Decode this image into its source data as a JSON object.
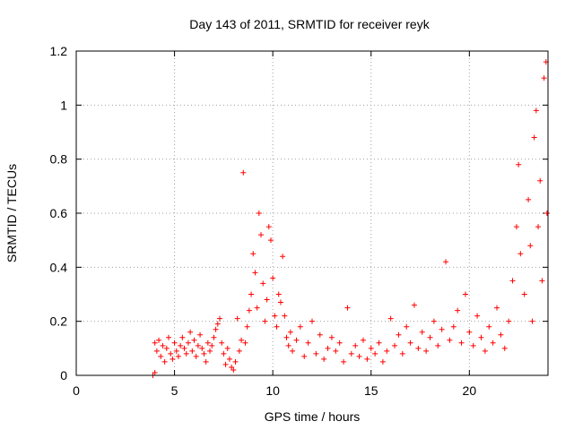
{
  "chart_data": {
    "type": "scatter",
    "title": "Day 143 of 2011, SRMTID for receiver reyk",
    "xlabel": "GPS time / hours",
    "ylabel": "SRMTID / TECUs",
    "xlim": [
      0,
      24
    ],
    "ylim": [
      0,
      1.2
    ],
    "xticks": [
      "0",
      "5",
      "10",
      "15",
      "20"
    ],
    "yticks": [
      "0",
      "0.2",
      "0.4",
      "0.6",
      "0.8",
      "1",
      "1.2"
    ],
    "grid": true,
    "marker": "plus",
    "color": "#ff0000",
    "series": [
      {
        "points": [
          [
            3.9,
            0.0
          ],
          [
            4.0,
            0.01
          ],
          [
            4.0,
            0.12
          ],
          [
            4.1,
            0.09
          ],
          [
            4.2,
            0.13
          ],
          [
            4.3,
            0.07
          ],
          [
            4.4,
            0.11
          ],
          [
            4.5,
            0.05
          ],
          [
            4.6,
            0.1
          ],
          [
            4.7,
            0.14
          ],
          [
            4.8,
            0.08
          ],
          [
            4.9,
            0.06
          ],
          [
            5.0,
            0.12
          ],
          [
            5.1,
            0.09
          ],
          [
            5.2,
            0.07
          ],
          [
            5.3,
            0.11
          ],
          [
            5.4,
            0.14
          ],
          [
            5.5,
            0.1
          ],
          [
            5.6,
            0.08
          ],
          [
            5.7,
            0.12
          ],
          [
            5.8,
            0.16
          ],
          [
            5.9,
            0.09
          ],
          [
            6.0,
            0.13
          ],
          [
            6.1,
            0.07
          ],
          [
            6.2,
            0.11
          ],
          [
            6.3,
            0.15
          ],
          [
            6.4,
            0.1
          ],
          [
            6.5,
            0.08
          ],
          [
            6.6,
            0.05
          ],
          [
            6.7,
            0.12
          ],
          [
            6.8,
            0.09
          ],
          [
            6.9,
            0.11
          ],
          [
            7.0,
            0.14
          ],
          [
            7.1,
            0.17
          ],
          [
            7.2,
            0.19
          ],
          [
            7.3,
            0.21
          ],
          [
            7.4,
            0.12
          ],
          [
            7.5,
            0.08
          ],
          [
            7.6,
            0.04
          ],
          [
            7.7,
            0.1
          ],
          [
            7.8,
            0.06
          ],
          [
            7.9,
            0.03
          ],
          [
            8.0,
            0.02
          ],
          [
            8.1,
            0.05
          ],
          [
            8.2,
            0.21
          ],
          [
            8.3,
            0.09
          ],
          [
            8.4,
            0.13
          ],
          [
            8.5,
            0.75
          ],
          [
            8.6,
            0.12
          ],
          [
            8.7,
            0.18
          ],
          [
            8.8,
            0.24
          ],
          [
            8.9,
            0.3
          ],
          [
            9.0,
            0.45
          ],
          [
            9.1,
            0.38
          ],
          [
            9.2,
            0.25
          ],
          [
            9.3,
            0.6
          ],
          [
            9.4,
            0.52
          ],
          [
            9.5,
            0.34
          ],
          [
            9.6,
            0.2
          ],
          [
            9.7,
            0.28
          ],
          [
            9.8,
            0.55
          ],
          [
            9.9,
            0.5
          ],
          [
            10.0,
            0.36
          ],
          [
            10.1,
            0.22
          ],
          [
            10.2,
            0.18
          ],
          [
            10.3,
            0.3
          ],
          [
            10.4,
            0.27
          ],
          [
            10.5,
            0.44
          ],
          [
            10.6,
            0.22
          ],
          [
            10.7,
            0.14
          ],
          [
            10.8,
            0.11
          ],
          [
            10.9,
            0.16
          ],
          [
            11.0,
            0.09
          ],
          [
            11.2,
            0.13
          ],
          [
            11.4,
            0.18
          ],
          [
            11.6,
            0.07
          ],
          [
            11.8,
            0.12
          ],
          [
            12.0,
            0.2
          ],
          [
            12.2,
            0.08
          ],
          [
            12.4,
            0.15
          ],
          [
            12.6,
            0.06
          ],
          [
            12.8,
            0.1
          ],
          [
            13.0,
            0.14
          ],
          [
            13.2,
            0.09
          ],
          [
            13.4,
            0.12
          ],
          [
            13.6,
            0.05
          ],
          [
            13.8,
            0.25
          ],
          [
            14.0,
            0.08
          ],
          [
            14.2,
            0.11
          ],
          [
            14.4,
            0.07
          ],
          [
            14.6,
            0.13
          ],
          [
            14.8,
            0.06
          ],
          [
            15.0,
            0.1
          ],
          [
            15.2,
            0.08
          ],
          [
            15.4,
            0.12
          ],
          [
            15.6,
            0.05
          ],
          [
            15.8,
            0.09
          ],
          [
            16.0,
            0.21
          ],
          [
            16.2,
            0.11
          ],
          [
            16.4,
            0.15
          ],
          [
            16.6,
            0.08
          ],
          [
            16.8,
            0.18
          ],
          [
            17.0,
            0.12
          ],
          [
            17.2,
            0.26
          ],
          [
            17.4,
            0.1
          ],
          [
            17.6,
            0.16
          ],
          [
            17.8,
            0.09
          ],
          [
            18.0,
            0.14
          ],
          [
            18.2,
            0.2
          ],
          [
            18.4,
            0.11
          ],
          [
            18.6,
            0.17
          ],
          [
            18.8,
            0.42
          ],
          [
            19.0,
            0.13
          ],
          [
            19.2,
            0.18
          ],
          [
            19.4,
            0.24
          ],
          [
            19.6,
            0.12
          ],
          [
            19.8,
            0.3
          ],
          [
            20.0,
            0.16
          ],
          [
            20.2,
            0.11
          ],
          [
            20.4,
            0.22
          ],
          [
            20.6,
            0.14
          ],
          [
            20.8,
            0.09
          ],
          [
            21.0,
            0.18
          ],
          [
            21.2,
            0.12
          ],
          [
            21.4,
            0.25
          ],
          [
            21.6,
            0.15
          ],
          [
            21.8,
            0.1
          ],
          [
            22.0,
            0.2
          ],
          [
            22.2,
            0.35
          ],
          [
            22.4,
            0.55
          ],
          [
            22.5,
            0.78
          ],
          [
            22.6,
            0.45
          ],
          [
            22.8,
            0.3
          ],
          [
            23.0,
            0.65
          ],
          [
            23.1,
            0.48
          ],
          [
            23.2,
            0.2
          ],
          [
            23.3,
            0.88
          ],
          [
            23.4,
            0.98
          ],
          [
            23.5,
            0.55
          ],
          [
            23.6,
            0.72
          ],
          [
            23.7,
            0.35
          ],
          [
            23.8,
            1.1
          ],
          [
            23.9,
            1.16
          ],
          [
            23.95,
            0.6
          ]
        ]
      }
    ]
  }
}
